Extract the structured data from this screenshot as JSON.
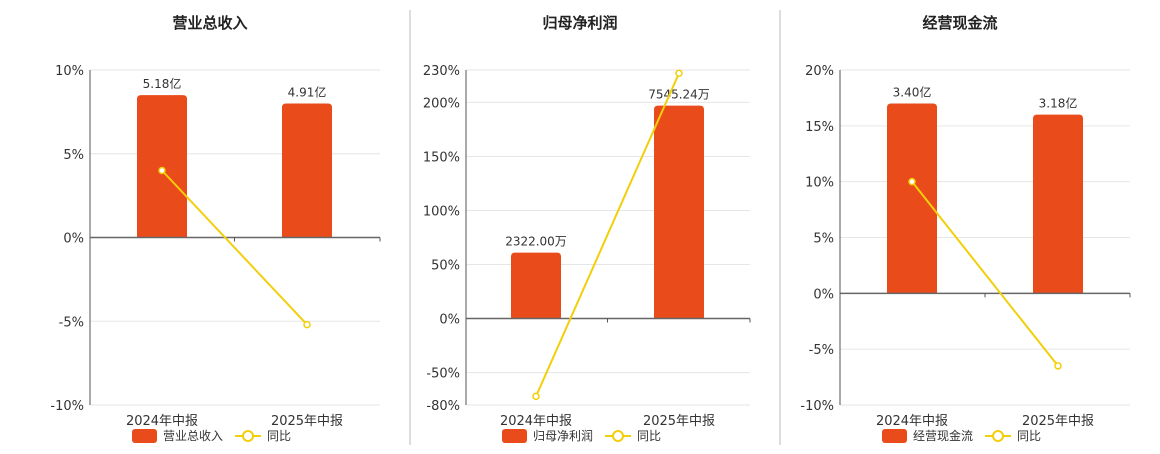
{
  "colors": {
    "bar": "#e94b1b",
    "line": "#f2cf0a"
  },
  "chart_data": [
    {
      "type": "bar",
      "title": "营业总收入",
      "categories": [
        "2024年中报",
        "2025年中报"
      ],
      "bar_series": {
        "name": "营业总收入",
        "values": [
          8.5,
          8.0
        ],
        "labels": [
          "5.18亿",
          "4.91亿"
        ]
      },
      "line_series": {
        "name": "同比",
        "values": [
          4.0,
          -5.2
        ]
      },
      "ylim": [
        -10,
        10
      ],
      "yticks": [
        10,
        5,
        0,
        -5,
        -10
      ],
      "ytick_labels": [
        "10%",
        "5%",
        "0%",
        "-5%",
        "-10%"
      ],
      "grid": true,
      "legend_position": "bottom"
    },
    {
      "type": "bar",
      "title": "归母净利润",
      "categories": [
        "2024年中报",
        "2025年中报"
      ],
      "bar_series": {
        "name": "归母净利润",
        "values": [
          61,
          197
        ],
        "labels": [
          "2322.00万",
          "7545.24万"
        ]
      },
      "line_series": {
        "name": "同比",
        "values": [
          -72,
          227
        ]
      },
      "ylim": [
        -80,
        230
      ],
      "yticks": [
        230,
        200,
        150,
        100,
        50,
        0,
        -50,
        -80
      ],
      "ytick_labels": [
        "230%",
        "200%",
        "150%",
        "100%",
        "50%",
        "0%",
        "-50%",
        "-80%"
      ],
      "grid": true,
      "legend_position": "bottom"
    },
    {
      "type": "bar",
      "title": "经营现金流",
      "categories": [
        "2024年中报",
        "2025年中报"
      ],
      "bar_series": {
        "name": "经营现金流",
        "values": [
          17,
          16
        ],
        "labels": [
          "3.40亿",
          "3.18亿"
        ]
      },
      "line_series": {
        "name": "同比",
        "values": [
          10,
          -6.5
        ]
      },
      "ylim": [
        -10,
        20
      ],
      "yticks": [
        20,
        15,
        10,
        5,
        0,
        -5,
        -10
      ],
      "ytick_labels": [
        "20%",
        "15%",
        "10%",
        "5%",
        "0%",
        "-5%",
        "-10%"
      ],
      "grid": true,
      "legend_position": "bottom"
    }
  ]
}
